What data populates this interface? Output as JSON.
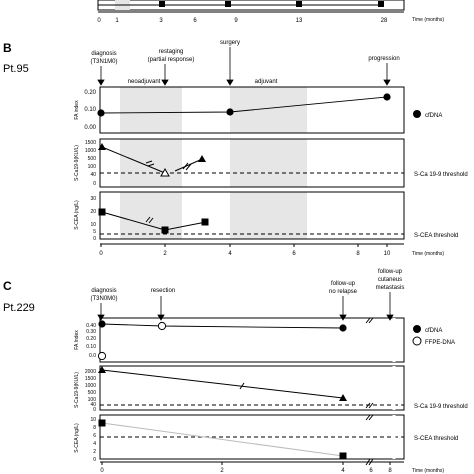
{
  "panel_a": {
    "ticks": [
      "0",
      "1",
      "3",
      "6",
      "9",
      "13",
      "28"
    ],
    "time_label": "Time (months)"
  },
  "panel_b": {
    "letter": "B",
    "patient": "Pt.95",
    "events": {
      "diagnosis": "diagnosis",
      "diagnosis_stage": "(T3N1M0)",
      "restaging": "restaging",
      "restaging_note": "(partial response)",
      "surgery": "surgery",
      "progression": "progression"
    },
    "phases": {
      "neoadjuvant": "neoadjuvant",
      "adjuvant": "adjuvant"
    },
    "fa": {
      "ylabel": "FA index",
      "ticks": [
        "0.20",
        "0.10",
        "0.00"
      ]
    },
    "ca199": {
      "ylabel": "S-Ca19-9(KU/L)",
      "ticks": [
        "1500",
        "1000",
        "500",
        "100",
        "40",
        "0"
      ],
      "threshold_label": "S-Ca 19-9 threshold"
    },
    "cea": {
      "ylabel": "S-CEA (ng/L)",
      "ticks": [
        "30",
        "20",
        "10",
        "5",
        "0"
      ],
      "threshold_label": "S-CEA threshold"
    },
    "legend": {
      "cfdna": "cfDNA"
    },
    "xticks": [
      "0",
      "2",
      "4",
      "6",
      "8",
      "10"
    ],
    "time_label": "Time (months)"
  },
  "panel_c": {
    "letter": "C",
    "patient": "Pt.229",
    "events": {
      "diagnosis": "diagnosis",
      "diagnosis_stage": "(T3N0M0)",
      "resection": "resection",
      "followup1": "follow-up",
      "followup1_note": "no relapse",
      "followup2": "follow-up",
      "followup2_note1": "cutaneus",
      "followup2_note2": "metastasis"
    },
    "fa": {
      "ylabel": "FA Index",
      "ticks": [
        "0.40",
        "0.30",
        "0.20",
        "0.10",
        "0.0"
      ]
    },
    "ca199": {
      "ylabel": "S-Ca19-9(KU/L)",
      "ticks": [
        "2000",
        "1500",
        "1000",
        "500",
        "100",
        "40",
        "0"
      ],
      "threshold_label": "S-Ca 19-9 threshold"
    },
    "cea": {
      "ylabel": "S-CEA (ng/L)",
      "ticks": [
        "10",
        "8",
        "6",
        "4",
        "2",
        "0"
      ],
      "threshold_label": "S-CEA threshold"
    },
    "legend": {
      "cfdna": "cfDNA",
      "ffpe": "FFPE-DNA"
    },
    "xticks": [
      "0",
      "2",
      "4",
      "6",
      "8"
    ],
    "time_label": "Time (months)"
  }
}
